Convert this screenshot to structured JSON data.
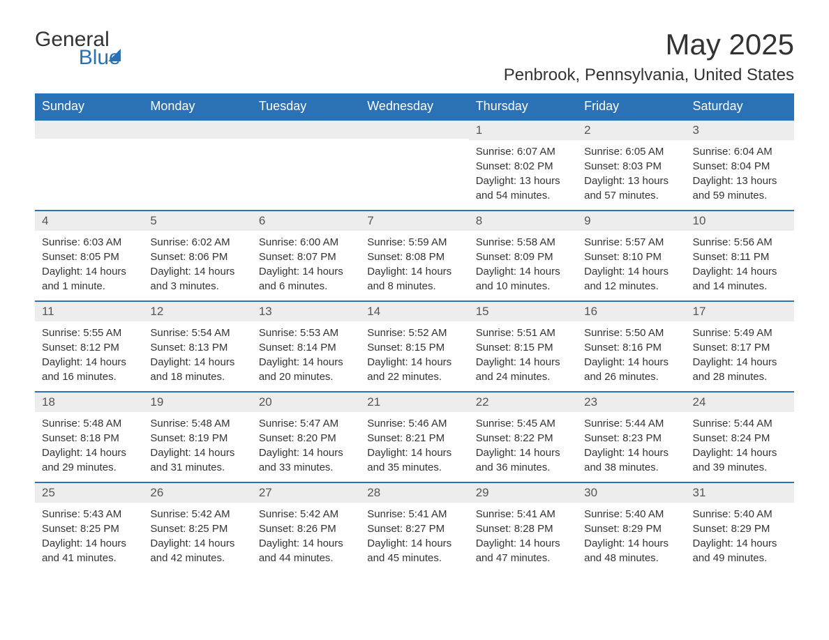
{
  "logo": {
    "text1": "General",
    "text2": "Blue"
  },
  "title": "May 2025",
  "location": "Penbrook, Pennsylvania, United States",
  "colors": {
    "header_bg": "#2a72b5",
    "header_text": "#ffffff",
    "day_row_bg": "#ededed",
    "border_top": "#2a72b5",
    "text": "#333333"
  },
  "weekdays": [
    "Sunday",
    "Monday",
    "Tuesday",
    "Wednesday",
    "Thursday",
    "Friday",
    "Saturday"
  ],
  "weeks": [
    [
      null,
      null,
      null,
      null,
      {
        "day": "1",
        "sunrise": "Sunrise: 6:07 AM",
        "sunset": "Sunset: 8:02 PM",
        "daylight": "Daylight: 13 hours and 54 minutes."
      },
      {
        "day": "2",
        "sunrise": "Sunrise: 6:05 AM",
        "sunset": "Sunset: 8:03 PM",
        "daylight": "Daylight: 13 hours and 57 minutes."
      },
      {
        "day": "3",
        "sunrise": "Sunrise: 6:04 AM",
        "sunset": "Sunset: 8:04 PM",
        "daylight": "Daylight: 13 hours and 59 minutes."
      }
    ],
    [
      {
        "day": "4",
        "sunrise": "Sunrise: 6:03 AM",
        "sunset": "Sunset: 8:05 PM",
        "daylight": "Daylight: 14 hours and 1 minute."
      },
      {
        "day": "5",
        "sunrise": "Sunrise: 6:02 AM",
        "sunset": "Sunset: 8:06 PM",
        "daylight": "Daylight: 14 hours and 3 minutes."
      },
      {
        "day": "6",
        "sunrise": "Sunrise: 6:00 AM",
        "sunset": "Sunset: 8:07 PM",
        "daylight": "Daylight: 14 hours and 6 minutes."
      },
      {
        "day": "7",
        "sunrise": "Sunrise: 5:59 AM",
        "sunset": "Sunset: 8:08 PM",
        "daylight": "Daylight: 14 hours and 8 minutes."
      },
      {
        "day": "8",
        "sunrise": "Sunrise: 5:58 AM",
        "sunset": "Sunset: 8:09 PM",
        "daylight": "Daylight: 14 hours and 10 minutes."
      },
      {
        "day": "9",
        "sunrise": "Sunrise: 5:57 AM",
        "sunset": "Sunset: 8:10 PM",
        "daylight": "Daylight: 14 hours and 12 minutes."
      },
      {
        "day": "10",
        "sunrise": "Sunrise: 5:56 AM",
        "sunset": "Sunset: 8:11 PM",
        "daylight": "Daylight: 14 hours and 14 minutes."
      }
    ],
    [
      {
        "day": "11",
        "sunrise": "Sunrise: 5:55 AM",
        "sunset": "Sunset: 8:12 PM",
        "daylight": "Daylight: 14 hours and 16 minutes."
      },
      {
        "day": "12",
        "sunrise": "Sunrise: 5:54 AM",
        "sunset": "Sunset: 8:13 PM",
        "daylight": "Daylight: 14 hours and 18 minutes."
      },
      {
        "day": "13",
        "sunrise": "Sunrise: 5:53 AM",
        "sunset": "Sunset: 8:14 PM",
        "daylight": "Daylight: 14 hours and 20 minutes."
      },
      {
        "day": "14",
        "sunrise": "Sunrise: 5:52 AM",
        "sunset": "Sunset: 8:15 PM",
        "daylight": "Daylight: 14 hours and 22 minutes."
      },
      {
        "day": "15",
        "sunrise": "Sunrise: 5:51 AM",
        "sunset": "Sunset: 8:15 PM",
        "daylight": "Daylight: 14 hours and 24 minutes."
      },
      {
        "day": "16",
        "sunrise": "Sunrise: 5:50 AM",
        "sunset": "Sunset: 8:16 PM",
        "daylight": "Daylight: 14 hours and 26 minutes."
      },
      {
        "day": "17",
        "sunrise": "Sunrise: 5:49 AM",
        "sunset": "Sunset: 8:17 PM",
        "daylight": "Daylight: 14 hours and 28 minutes."
      }
    ],
    [
      {
        "day": "18",
        "sunrise": "Sunrise: 5:48 AM",
        "sunset": "Sunset: 8:18 PM",
        "daylight": "Daylight: 14 hours and 29 minutes."
      },
      {
        "day": "19",
        "sunrise": "Sunrise: 5:48 AM",
        "sunset": "Sunset: 8:19 PM",
        "daylight": "Daylight: 14 hours and 31 minutes."
      },
      {
        "day": "20",
        "sunrise": "Sunrise: 5:47 AM",
        "sunset": "Sunset: 8:20 PM",
        "daylight": "Daylight: 14 hours and 33 minutes."
      },
      {
        "day": "21",
        "sunrise": "Sunrise: 5:46 AM",
        "sunset": "Sunset: 8:21 PM",
        "daylight": "Daylight: 14 hours and 35 minutes."
      },
      {
        "day": "22",
        "sunrise": "Sunrise: 5:45 AM",
        "sunset": "Sunset: 8:22 PM",
        "daylight": "Daylight: 14 hours and 36 minutes."
      },
      {
        "day": "23",
        "sunrise": "Sunrise: 5:44 AM",
        "sunset": "Sunset: 8:23 PM",
        "daylight": "Daylight: 14 hours and 38 minutes."
      },
      {
        "day": "24",
        "sunrise": "Sunrise: 5:44 AM",
        "sunset": "Sunset: 8:24 PM",
        "daylight": "Daylight: 14 hours and 39 minutes."
      }
    ],
    [
      {
        "day": "25",
        "sunrise": "Sunrise: 5:43 AM",
        "sunset": "Sunset: 8:25 PM",
        "daylight": "Daylight: 14 hours and 41 minutes."
      },
      {
        "day": "26",
        "sunrise": "Sunrise: 5:42 AM",
        "sunset": "Sunset: 8:25 PM",
        "daylight": "Daylight: 14 hours and 42 minutes."
      },
      {
        "day": "27",
        "sunrise": "Sunrise: 5:42 AM",
        "sunset": "Sunset: 8:26 PM",
        "daylight": "Daylight: 14 hours and 44 minutes."
      },
      {
        "day": "28",
        "sunrise": "Sunrise: 5:41 AM",
        "sunset": "Sunset: 8:27 PM",
        "daylight": "Daylight: 14 hours and 45 minutes."
      },
      {
        "day": "29",
        "sunrise": "Sunrise: 5:41 AM",
        "sunset": "Sunset: 8:28 PM",
        "daylight": "Daylight: 14 hours and 47 minutes."
      },
      {
        "day": "30",
        "sunrise": "Sunrise: 5:40 AM",
        "sunset": "Sunset: 8:29 PM",
        "daylight": "Daylight: 14 hours and 48 minutes."
      },
      {
        "day": "31",
        "sunrise": "Sunrise: 5:40 AM",
        "sunset": "Sunset: 8:29 PM",
        "daylight": "Daylight: 14 hours and 49 minutes."
      }
    ]
  ]
}
